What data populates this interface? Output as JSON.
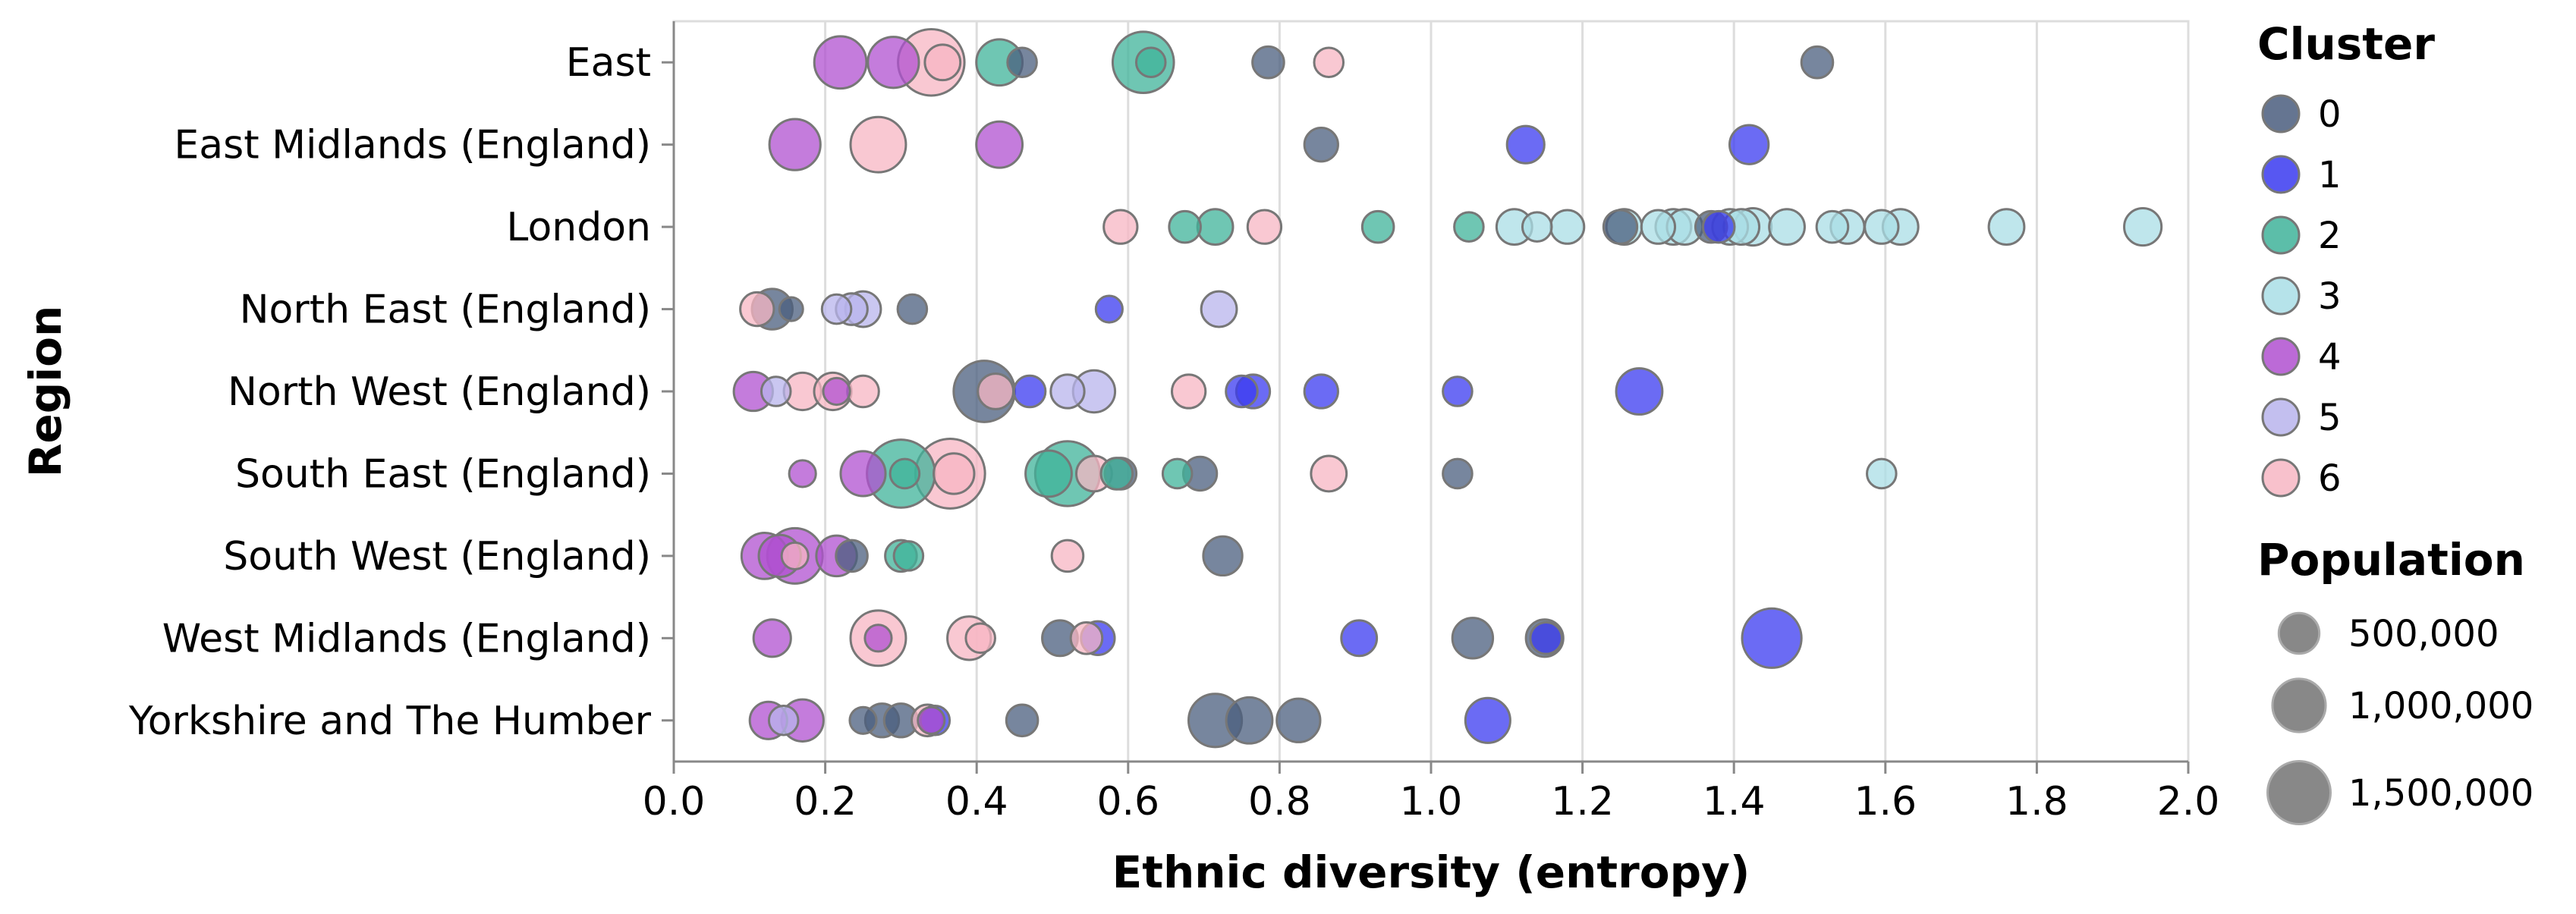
{
  "chart_data": {
    "type": "scatter",
    "xlabel": "Ethnic diversity (entropy)",
    "ylabel": "Region",
    "xlim": [
      0,
      2
    ],
    "x_ticks": [
      "0.0",
      "0.2",
      "0.4",
      "0.6",
      "0.8",
      "1.0",
      "1.2",
      "1.4",
      "1.6",
      "1.8",
      "2.0"
    ],
    "categories": [
      "East",
      "East Midlands (England)",
      "London",
      "North East (England)",
      "North West (England)",
      "South East (England)",
      "South West (England)",
      "West Midlands (England)",
      "Yorkshire and The Humber"
    ],
    "grid": "vertical",
    "legend_placement": "right",
    "cluster_legend": {
      "title": "Cluster",
      "items": [
        {
          "label": "0",
          "color": "#4a5d7e"
        },
        {
          "label": "1",
          "color": "#3a3af0"
        },
        {
          "label": "2",
          "color": "#3fb39a"
        },
        {
          "label": "3",
          "color": "#a9dee6"
        },
        {
          "label": "4",
          "color": "#b050d0"
        },
        {
          "label": "5",
          "color": "#b8b4ec"
        },
        {
          "label": "6",
          "color": "#f7b6c3"
        }
      ]
    },
    "size_legend": {
      "title": "Population",
      "items": [
        {
          "label": "500,000",
          "value": 500000
        },
        {
          "label": "1,000,000",
          "value": 1000000
        },
        {
          "label": "1,500,000",
          "value": 1500000
        }
      ]
    },
    "points": [
      {
        "region": "East",
        "x": 0.22,
        "cluster": 4,
        "pop": 950000
      },
      {
        "region": "East",
        "x": 0.29,
        "cluster": 4,
        "pop": 900000
      },
      {
        "region": "East",
        "x": 0.34,
        "cluster": 6,
        "pop": 1700000
      },
      {
        "region": "East",
        "x": 0.355,
        "cluster": 6,
        "pop": 350000
      },
      {
        "region": "East",
        "x": 0.43,
        "cluster": 2,
        "pop": 700000
      },
      {
        "region": "East",
        "x": 0.46,
        "cluster": 0,
        "pop": 200000
      },
      {
        "region": "East",
        "x": 0.62,
        "cluster": 2,
        "pop": 1400000
      },
      {
        "region": "East",
        "x": 0.63,
        "cluster": 2,
        "pop": 200000
      },
      {
        "region": "East",
        "x": 0.785,
        "cluster": 0,
        "pop": 250000
      },
      {
        "region": "East",
        "x": 0.865,
        "cluster": 6,
        "pop": 200000
      },
      {
        "region": "East",
        "x": 1.51,
        "cluster": 0,
        "pop": 250000
      },
      {
        "region": "East Midlands (England)",
        "x": 0.16,
        "cluster": 4,
        "pop": 900000
      },
      {
        "region": "East Midlands (England)",
        "x": 0.27,
        "cluster": 6,
        "pop": 1100000
      },
      {
        "region": "East Midlands (England)",
        "x": 0.43,
        "cluster": 4,
        "pop": 700000
      },
      {
        "region": "East Midlands (England)",
        "x": 0.855,
        "cluster": 0,
        "pop": 300000
      },
      {
        "region": "East Midlands (England)",
        "x": 1.125,
        "cluster": 1,
        "pop": 400000
      },
      {
        "region": "East Midlands (England)",
        "x": 1.42,
        "cluster": 1,
        "pop": 450000
      },
      {
        "region": "London",
        "x": 0.59,
        "cluster": 6,
        "pop": 300000
      },
      {
        "region": "London",
        "x": 0.675,
        "cluster": 2,
        "pop": 250000
      },
      {
        "region": "London",
        "x": 0.715,
        "cluster": 2,
        "pop": 350000
      },
      {
        "region": "London",
        "x": 0.78,
        "cluster": 6,
        "pop": 300000
      },
      {
        "region": "London",
        "x": 0.93,
        "cluster": 2,
        "pop": 250000
      },
      {
        "region": "London",
        "x": 1.05,
        "cluster": 2,
        "pop": 200000
      },
      {
        "region": "London",
        "x": 1.11,
        "cluster": 3,
        "pop": 350000
      },
      {
        "region": "London",
        "x": 1.14,
        "cluster": 3,
        "pop": 200000
      },
      {
        "region": "London",
        "x": 1.18,
        "cluster": 3,
        "pop": 300000
      },
      {
        "region": "London",
        "x": 1.25,
        "cluster": 0,
        "pop": 300000
      },
      {
        "region": "London",
        "x": 1.255,
        "cluster": 3,
        "pop": 350000
      },
      {
        "region": "London",
        "x": 1.3,
        "cluster": 3,
        "pop": 300000
      },
      {
        "region": "London",
        "x": 1.32,
        "cluster": 3,
        "pop": 350000
      },
      {
        "region": "London",
        "x": 1.335,
        "cluster": 3,
        "pop": 350000
      },
      {
        "region": "London",
        "x": 1.37,
        "cluster": 0,
        "pop": 250000
      },
      {
        "region": "London",
        "x": 1.38,
        "cluster": 1,
        "pop": 250000
      },
      {
        "region": "London",
        "x": 1.395,
        "cluster": 3,
        "pop": 350000
      },
      {
        "region": "London",
        "x": 1.41,
        "cluster": 3,
        "pop": 350000
      },
      {
        "region": "London",
        "x": 1.425,
        "cluster": 3,
        "pop": 400000
      },
      {
        "region": "London",
        "x": 1.47,
        "cluster": 3,
        "pop": 350000
      },
      {
        "region": "London",
        "x": 1.53,
        "cluster": 3,
        "pop": 250000
      },
      {
        "region": "London",
        "x": 1.55,
        "cluster": 3,
        "pop": 300000
      },
      {
        "region": "London",
        "x": 1.595,
        "cluster": 3,
        "pop": 300000
      },
      {
        "region": "London",
        "x": 1.62,
        "cluster": 3,
        "pop": 350000
      },
      {
        "region": "London",
        "x": 1.76,
        "cluster": 3,
        "pop": 350000
      },
      {
        "region": "London",
        "x": 1.94,
        "cluster": 3,
        "pop": 400000
      },
      {
        "region": "North East (England)",
        "x": 0.11,
        "cluster": 6,
        "pop": 300000
      },
      {
        "region": "North East (England)",
        "x": 0.13,
        "cluster": 0,
        "pop": 500000
      },
      {
        "region": "North East (England)",
        "x": 0.155,
        "cluster": 0,
        "pop": 100000
      },
      {
        "region": "North East (England)",
        "x": 0.215,
        "cluster": 5,
        "pop": 200000
      },
      {
        "region": "North East (England)",
        "x": 0.235,
        "cluster": 5,
        "pop": 250000
      },
      {
        "region": "North East (England)",
        "x": 0.25,
        "cluster": 5,
        "pop": 350000
      },
      {
        "region": "North East (England)",
        "x": 0.315,
        "cluster": 0,
        "pop": 200000
      },
      {
        "region": "North East (England)",
        "x": 0.575,
        "cluster": 1,
        "pop": 150000
      },
      {
        "region": "North East (England)",
        "x": 0.72,
        "cluster": 5,
        "pop": 350000
      },
      {
        "region": "North West (England)",
        "x": 0.105,
        "cluster": 4,
        "pop": 450000
      },
      {
        "region": "North West (England)",
        "x": 0.135,
        "cluster": 5,
        "pop": 200000
      },
      {
        "region": "North West (England)",
        "x": 0.17,
        "cluster": 6,
        "pop": 400000
      },
      {
        "region": "North West (England)",
        "x": 0.21,
        "cluster": 6,
        "pop": 400000
      },
      {
        "region": "North West (England)",
        "x": 0.215,
        "cluster": 4,
        "pop": 150000
      },
      {
        "region": "North West (England)",
        "x": 0.25,
        "cluster": 6,
        "pop": 250000
      },
      {
        "region": "North West (England)",
        "x": 0.41,
        "cluster": 0,
        "pop": 1400000
      },
      {
        "region": "North West (England)",
        "x": 0.425,
        "cluster": 6,
        "pop": 350000
      },
      {
        "region": "North West (England)",
        "x": 0.47,
        "cluster": 1,
        "pop": 250000
      },
      {
        "region": "North West (England)",
        "x": 0.52,
        "cluster": 5,
        "pop": 300000
      },
      {
        "region": "North West (England)",
        "x": 0.555,
        "cluster": 5,
        "pop": 550000
      },
      {
        "region": "North West (England)",
        "x": 0.68,
        "cluster": 6,
        "pop": 300000
      },
      {
        "region": "North West (England)",
        "x": 0.75,
        "cluster": 1,
        "pop": 250000
      },
      {
        "region": "North West (England)",
        "x": 0.765,
        "cluster": 1,
        "pop": 300000
      },
      {
        "region": "North West (England)",
        "x": 0.855,
        "cluster": 1,
        "pop": 300000
      },
      {
        "region": "North West (England)",
        "x": 1.035,
        "cluster": 1,
        "pop": 200000
      },
      {
        "region": "North West (England)",
        "x": 1.275,
        "cluster": 1,
        "pop": 700000
      },
      {
        "region": "South East (England)",
        "x": 0.17,
        "cluster": 4,
        "pop": 150000
      },
      {
        "region": "South East (England)",
        "x": 0.25,
        "cluster": 4,
        "pop": 650000
      },
      {
        "region": "South East (England)",
        "x": 0.3,
        "cluster": 2,
        "pop": 1800000
      },
      {
        "region": "South East (England)",
        "x": 0.305,
        "cluster": 2,
        "pop": 200000
      },
      {
        "region": "South East (England)",
        "x": 0.365,
        "cluster": 6,
        "pop": 1900000
      },
      {
        "region": "South East (England)",
        "x": 0.37,
        "cluster": 6,
        "pop": 500000
      },
      {
        "region": "South East (England)",
        "x": 0.495,
        "cluster": 2,
        "pop": 700000
      },
      {
        "region": "South East (England)",
        "x": 0.52,
        "cluster": 2,
        "pop": 1600000
      },
      {
        "region": "South East (England)",
        "x": 0.555,
        "cluster": 6,
        "pop": 350000
      },
      {
        "region": "South East (England)",
        "x": 0.59,
        "cluster": 0,
        "pop": 250000
      },
      {
        "region": "South East (England)",
        "x": 0.585,
        "cluster": 2,
        "pop": 250000
      },
      {
        "region": "South East (England)",
        "x": 0.665,
        "cluster": 2,
        "pop": 200000
      },
      {
        "region": "South East (England)",
        "x": 0.695,
        "cluster": 0,
        "pop": 300000
      },
      {
        "region": "South East (England)",
        "x": 0.865,
        "cluster": 6,
        "pop": 350000
      },
      {
        "region": "South East (England)",
        "x": 1.035,
        "cluster": 0,
        "pop": 200000
      },
      {
        "region": "South East (England)",
        "x": 1.595,
        "cluster": 3,
        "pop": 200000
      },
      {
        "region": "South West (England)",
        "x": 0.12,
        "cluster": 4,
        "pop": 700000
      },
      {
        "region": "South West (England)",
        "x": 0.14,
        "cluster": 4,
        "pop": 550000
      },
      {
        "region": "South West (England)",
        "x": 0.16,
        "cluster": 4,
        "pop": 1100000
      },
      {
        "region": "South West (England)",
        "x": 0.16,
        "cluster": 6,
        "pop": 150000
      },
      {
        "region": "South West (England)",
        "x": 0.215,
        "cluster": 4,
        "pop": 500000
      },
      {
        "region": "South West (England)",
        "x": 0.235,
        "cluster": 0,
        "pop": 250000
      },
      {
        "region": "South West (England)",
        "x": 0.3,
        "cluster": 2,
        "pop": 250000
      },
      {
        "region": "South West (England)",
        "x": 0.31,
        "cluster": 2,
        "pop": 200000
      },
      {
        "region": "South West (England)",
        "x": 0.52,
        "cluster": 6,
        "pop": 250000
      },
      {
        "region": "South West (England)",
        "x": 0.725,
        "cluster": 0,
        "pop": 450000
      },
      {
        "region": "West Midlands (England)",
        "x": 0.13,
        "cluster": 4,
        "pop": 400000
      },
      {
        "region": "West Midlands (England)",
        "x": 0.27,
        "cluster": 6,
        "pop": 1100000
      },
      {
        "region": "West Midlands (England)",
        "x": 0.27,
        "cluster": 4,
        "pop": 150000
      },
      {
        "region": "West Midlands (England)",
        "x": 0.39,
        "cluster": 6,
        "pop": 600000
      },
      {
        "region": "West Midlands (England)",
        "x": 0.405,
        "cluster": 6,
        "pop": 200000
      },
      {
        "region": "West Midlands (England)",
        "x": 0.51,
        "cluster": 0,
        "pop": 350000
      },
      {
        "region": "West Midlands (England)",
        "x": 0.545,
        "cluster": 6,
        "pop": 250000
      },
      {
        "region": "West Midlands (England)",
        "x": 0.56,
        "cluster": 1,
        "pop": 300000
      },
      {
        "region": "West Midlands (England)",
        "x": 0.905,
        "cluster": 1,
        "pop": 350000
      },
      {
        "region": "West Midlands (England)",
        "x": 1.055,
        "cluster": 0,
        "pop": 500000
      },
      {
        "region": "West Midlands (England)",
        "x": 1.15,
        "cluster": 0,
        "pop": 400000
      },
      {
        "region": "West Midlands (England)",
        "x": 1.152,
        "cluster": 1,
        "pop": 250000
      },
      {
        "region": "West Midlands (England)",
        "x": 1.45,
        "cluster": 1,
        "pop": 1300000
      },
      {
        "region": "Yorkshire and The Humber",
        "x": 0.125,
        "cluster": 4,
        "pop": 400000
      },
      {
        "region": "Yorkshire and The Humber",
        "x": 0.145,
        "cluster": 5,
        "pop": 200000
      },
      {
        "region": "Yorkshire and The Humber",
        "x": 0.17,
        "cluster": 4,
        "pop": 550000
      },
      {
        "region": "Yorkshire and The Humber",
        "x": 0.25,
        "cluster": 0,
        "pop": 150000
      },
      {
        "region": "Yorkshire and The Humber",
        "x": 0.275,
        "cluster": 0,
        "pop": 300000
      },
      {
        "region": "Yorkshire and The Humber",
        "x": 0.3,
        "cluster": 0,
        "pop": 300000
      },
      {
        "region": "Yorkshire and The Humber",
        "x": 0.335,
        "cluster": 6,
        "pop": 250000
      },
      {
        "region": "Yorkshire and The Humber",
        "x": 0.345,
        "cluster": 1,
        "pop": 200000
      },
      {
        "region": "Yorkshire and The Humber",
        "x": 0.34,
        "cluster": 4,
        "pop": 150000
      },
      {
        "region": "Yorkshire and The Humber",
        "x": 0.46,
        "cluster": 0,
        "pop": 250000
      },
      {
        "region": "Yorkshire and The Humber",
        "x": 0.715,
        "cluster": 0,
        "pop": 1000000
      },
      {
        "region": "Yorkshire and The Humber",
        "x": 0.76,
        "cluster": 0,
        "pop": 700000
      },
      {
        "region": "Yorkshire and The Humber",
        "x": 0.825,
        "cluster": 0,
        "pop": 600000
      },
      {
        "region": "Yorkshire and The Humber",
        "x": 1.075,
        "cluster": 1,
        "pop": 650000
      }
    ]
  }
}
